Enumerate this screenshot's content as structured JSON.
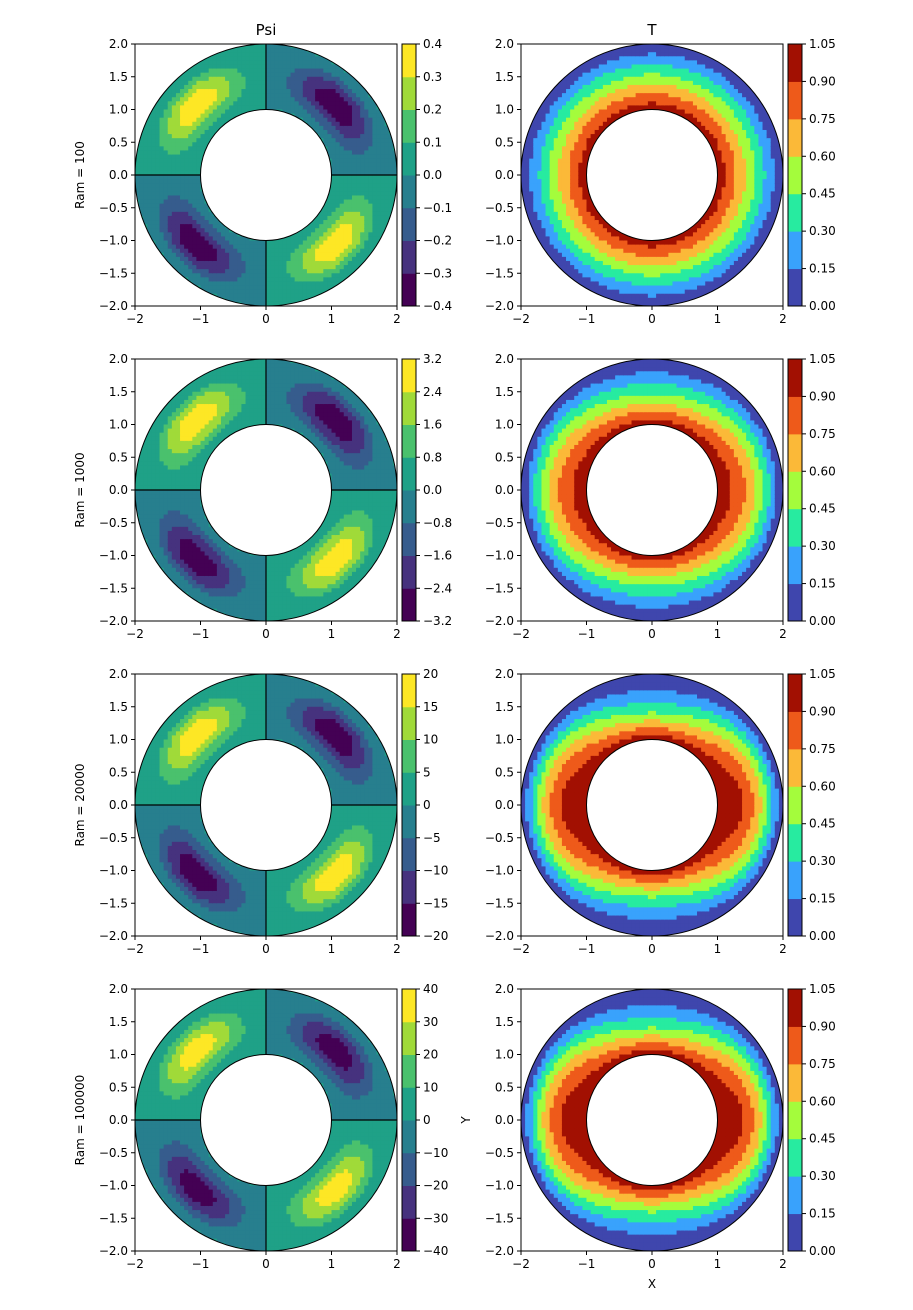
{
  "figure": {
    "column_titles": [
      "Psi",
      "T"
    ],
    "x_axis_label": "X",
    "y_axis_label": "Y",
    "row_labels": [
      "Ram = 100",
      "Ram = 1000",
      "Ram = 20000",
      "Ram = 100000"
    ]
  },
  "colors": {
    "psi_colormap": [
      "#440154",
      "#46327e",
      "#365c8d",
      "#277f8e",
      "#1fa187",
      "#4ac16d",
      "#a0da39",
      "#fde725"
    ],
    "t_levels": [
      "#3f46ad",
      "#39a2fc",
      "#27eba0",
      "#a4fc3c",
      "#fbb938",
      "#ee5a1a",
      "#a21002"
    ],
    "line_color": "#000000"
  },
  "chart_data": [
    {
      "type": "contour",
      "field": "Psi",
      "ram": 100,
      "title": "Psi",
      "xlabel": "",
      "ylabel": "Ram = 100",
      "xlim": [
        -2,
        2
      ],
      "ylim": [
        -2,
        2
      ],
      "x_ticks": [
        -2,
        -1,
        0,
        1,
        2
      ],
      "y_ticks": [
        -2.0,
        -1.5,
        -1.0,
        -0.5,
        0.0,
        0.5,
        1.0,
        1.5,
        2.0
      ],
      "annulus": {
        "inner_radius": 1,
        "outer_radius": 2
      },
      "colorbar_ticks": [
        "-0.4",
        "-0.3",
        "-0.2",
        "-0.1",
        "0.0",
        "0.1",
        "0.2",
        "0.3",
        "0.4"
      ],
      "colorbar_range": [
        -0.4,
        0.4
      ],
      "max_abs": 0.37
    },
    {
      "type": "contour",
      "field": "T",
      "ram": 100,
      "title": "T",
      "xlabel": "",
      "ylabel": "",
      "xlim": [
        -2,
        2
      ],
      "ylim": [
        -2,
        2
      ],
      "x_ticks": [
        -2,
        -1,
        0,
        1,
        2
      ],
      "y_ticks": [
        -2.0,
        -1.5,
        -1.0,
        -0.5,
        0.0,
        0.5,
        1.0,
        1.5,
        2.0
      ],
      "annulus": {
        "inner_radius": 1,
        "outer_radius": 2
      },
      "colorbar_ticks": [
        "0.00",
        "0.15",
        "0.30",
        "0.45",
        "0.60",
        "0.75",
        "0.90",
        "1.05"
      ],
      "levels": [
        0,
        0.15,
        0.3,
        0.45,
        0.6,
        0.75,
        0.9,
        1.05
      ]
    },
    {
      "type": "contour",
      "field": "Psi",
      "ram": 1000,
      "title": "",
      "xlabel": "",
      "ylabel": "Ram = 1000",
      "xlim": [
        -2,
        2
      ],
      "ylim": [
        -2,
        2
      ],
      "x_ticks": [
        -2,
        -1,
        0,
        1,
        2
      ],
      "y_ticks": [
        -2.0,
        -1.5,
        -1.0,
        -0.5,
        0.0,
        0.5,
        1.0,
        1.5,
        2.0
      ],
      "annulus": {
        "inner_radius": 1,
        "outer_radius": 2
      },
      "colorbar_ticks": [
        "-3.2",
        "-2.4",
        "-1.6",
        "-0.8",
        "0.0",
        "0.8",
        "1.6",
        "2.4",
        "3.2"
      ],
      "colorbar_range": [
        -3.2,
        3.2
      ],
      "max_abs": 3.0
    },
    {
      "type": "contour",
      "field": "T",
      "ram": 1000,
      "title": "",
      "xlabel": "",
      "ylabel": "",
      "xlim": [
        -2,
        2
      ],
      "ylim": [
        -2,
        2
      ],
      "x_ticks": [
        -2,
        -1,
        0,
        1,
        2
      ],
      "y_ticks": [
        -2.0,
        -1.5,
        -1.0,
        -0.5,
        0.0,
        0.5,
        1.0,
        1.5,
        2.0
      ],
      "annulus": {
        "inner_radius": 1,
        "outer_radius": 2
      },
      "colorbar_ticks": [
        "0.00",
        "0.15",
        "0.30",
        "0.45",
        "0.60",
        "0.75",
        "0.90",
        "1.05"
      ],
      "levels": [
        0,
        0.15,
        0.3,
        0.45,
        0.6,
        0.75,
        0.9,
        1.05
      ]
    },
    {
      "type": "contour",
      "field": "Psi",
      "ram": 20000,
      "title": "",
      "xlabel": "",
      "ylabel": "Ram = 20000",
      "xlim": [
        -2,
        2
      ],
      "ylim": [
        -2,
        2
      ],
      "x_ticks": [
        -2,
        -1,
        0,
        1,
        2
      ],
      "y_ticks": [
        -2.0,
        -1.5,
        -1.0,
        -0.5,
        0.0,
        0.5,
        1.0,
        1.5,
        2.0
      ],
      "annulus": {
        "inner_radius": 1,
        "outer_radius": 2
      },
      "colorbar_ticks": [
        "-20",
        "-15",
        "-10",
        "-5",
        "0",
        "5",
        "10",
        "15",
        "20"
      ],
      "colorbar_range": [
        -20,
        20
      ],
      "max_abs": 18.5
    },
    {
      "type": "contour",
      "field": "T",
      "ram": 20000,
      "title": "",
      "xlabel": "",
      "ylabel": "",
      "xlim": [
        -2,
        2
      ],
      "ylim": [
        -2,
        2
      ],
      "x_ticks": [
        -2,
        -1,
        0,
        1,
        2
      ],
      "y_ticks": [
        -2.0,
        -1.5,
        -1.0,
        -0.5,
        0.0,
        0.5,
        1.0,
        1.5,
        2.0
      ],
      "annulus": {
        "inner_radius": 1,
        "outer_radius": 2
      },
      "colorbar_ticks": [
        "0.00",
        "0.15",
        "0.30",
        "0.45",
        "0.60",
        "0.75",
        "0.90",
        "1.05"
      ],
      "levels": [
        0,
        0.15,
        0.3,
        0.45,
        0.6,
        0.75,
        0.9,
        1.05
      ]
    },
    {
      "type": "contour",
      "field": "Psi",
      "ram": 100000,
      "title": "",
      "xlabel": "",
      "ylabel": "Ram = 100000",
      "xlim": [
        -2,
        2
      ],
      "ylim": [
        -2,
        2
      ],
      "x_ticks": [
        -2,
        -1,
        0,
        1,
        2
      ],
      "y_ticks": [
        -2.0,
        -1.5,
        -1.0,
        -0.5,
        0.0,
        0.5,
        1.0,
        1.5,
        2.0
      ],
      "annulus": {
        "inner_radius": 1,
        "outer_radius": 2
      },
      "colorbar_ticks": [
        "-40",
        "-30",
        "-20",
        "-10",
        "0",
        "10",
        "20",
        "30",
        "40"
      ],
      "colorbar_range": [
        -40,
        40
      ],
      "max_abs": 36
    },
    {
      "type": "contour",
      "field": "T",
      "ram": 100000,
      "title": "",
      "xlabel": "X",
      "ylabel": "Y",
      "xlim": [
        -2,
        2
      ],
      "ylim": [
        -2,
        2
      ],
      "x_ticks": [
        -2,
        -1,
        0,
        1,
        2
      ],
      "y_ticks": [
        -2.0,
        -1.5,
        -1.0,
        -0.5,
        0.0,
        0.5,
        1.0,
        1.5,
        2.0
      ],
      "annulus": {
        "inner_radius": 1,
        "outer_radius": 2
      },
      "colorbar_ticks": [
        "0.00",
        "0.15",
        "0.30",
        "0.45",
        "0.60",
        "0.75",
        "0.90",
        "1.05"
      ],
      "levels": [
        0,
        0.15,
        0.3,
        0.45,
        0.6,
        0.75,
        0.9,
        1.05
      ]
    }
  ]
}
